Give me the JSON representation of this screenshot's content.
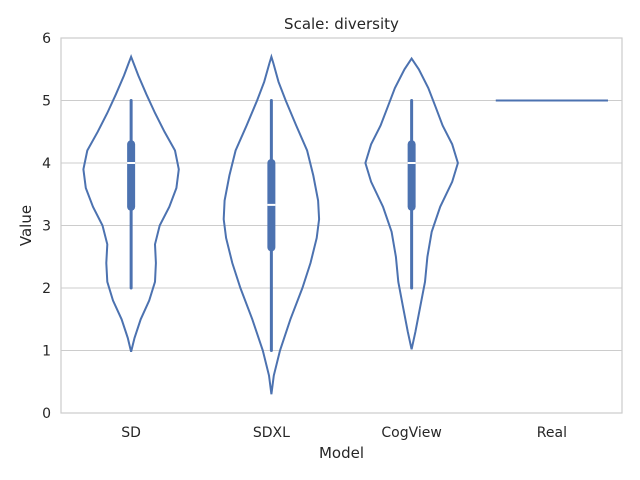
{
  "chart_data": {
    "type": "violin",
    "title": "Scale: diversity",
    "xlabel": "Model",
    "ylabel": "Value",
    "ylim": [
      0,
      6
    ],
    "yticks": [
      "0",
      "1",
      "2",
      "3",
      "4",
      "5",
      "6"
    ],
    "grid": true,
    "color": "#4c72b0",
    "categories": [
      "SD",
      "SDXL",
      "CogView",
      "Real"
    ],
    "series": [
      {
        "category": "SD",
        "whisker": [
          2,
          5
        ],
        "q1": 3.3,
        "median": 4.0,
        "q3": 4.3,
        "density": [
          [
            0.98,
            0.0
          ],
          [
            1.2,
            0.07
          ],
          [
            1.5,
            0.2
          ],
          [
            1.8,
            0.38
          ],
          [
            2.1,
            0.5
          ],
          [
            2.4,
            0.52
          ],
          [
            2.7,
            0.5
          ],
          [
            3.0,
            0.6
          ],
          [
            3.3,
            0.8
          ],
          [
            3.6,
            0.95
          ],
          [
            3.9,
            1.0
          ],
          [
            4.2,
            0.92
          ],
          [
            4.5,
            0.7
          ],
          [
            4.8,
            0.5
          ],
          [
            5.1,
            0.32
          ],
          [
            5.4,
            0.15
          ],
          [
            5.6,
            0.05
          ],
          [
            5.7,
            0.0
          ]
        ]
      },
      {
        "category": "SDXL",
        "whisker": [
          1,
          5
        ],
        "q1": 2.65,
        "median": 3.33,
        "q3": 4.0,
        "density": [
          [
            0.3,
            0.0
          ],
          [
            0.6,
            0.05
          ],
          [
            1.0,
            0.18
          ],
          [
            1.5,
            0.4
          ],
          [
            2.0,
            0.65
          ],
          [
            2.4,
            0.82
          ],
          [
            2.8,
            0.95
          ],
          [
            3.1,
            1.0
          ],
          [
            3.4,
            0.98
          ],
          [
            3.8,
            0.88
          ],
          [
            4.2,
            0.75
          ],
          [
            4.6,
            0.52
          ],
          [
            5.0,
            0.3
          ],
          [
            5.3,
            0.15
          ],
          [
            5.6,
            0.04
          ],
          [
            5.7,
            0.0
          ]
        ]
      },
      {
        "category": "CogView",
        "whisker": [
          2,
          5
        ],
        "q1": 3.3,
        "median": 4.0,
        "q3": 4.3,
        "density": [
          [
            1.02,
            0.0
          ],
          [
            1.3,
            0.08
          ],
          [
            1.7,
            0.18
          ],
          [
            2.1,
            0.28
          ],
          [
            2.5,
            0.33
          ],
          [
            2.9,
            0.42
          ],
          [
            3.3,
            0.6
          ],
          [
            3.7,
            0.85
          ],
          [
            4.0,
            0.97
          ],
          [
            4.3,
            0.85
          ],
          [
            4.6,
            0.65
          ],
          [
            4.9,
            0.5
          ],
          [
            5.2,
            0.35
          ],
          [
            5.5,
            0.15
          ],
          [
            5.67,
            0.0
          ]
        ]
      },
      {
        "category": "Real",
        "constant": 5,
        "density": []
      }
    ]
  }
}
